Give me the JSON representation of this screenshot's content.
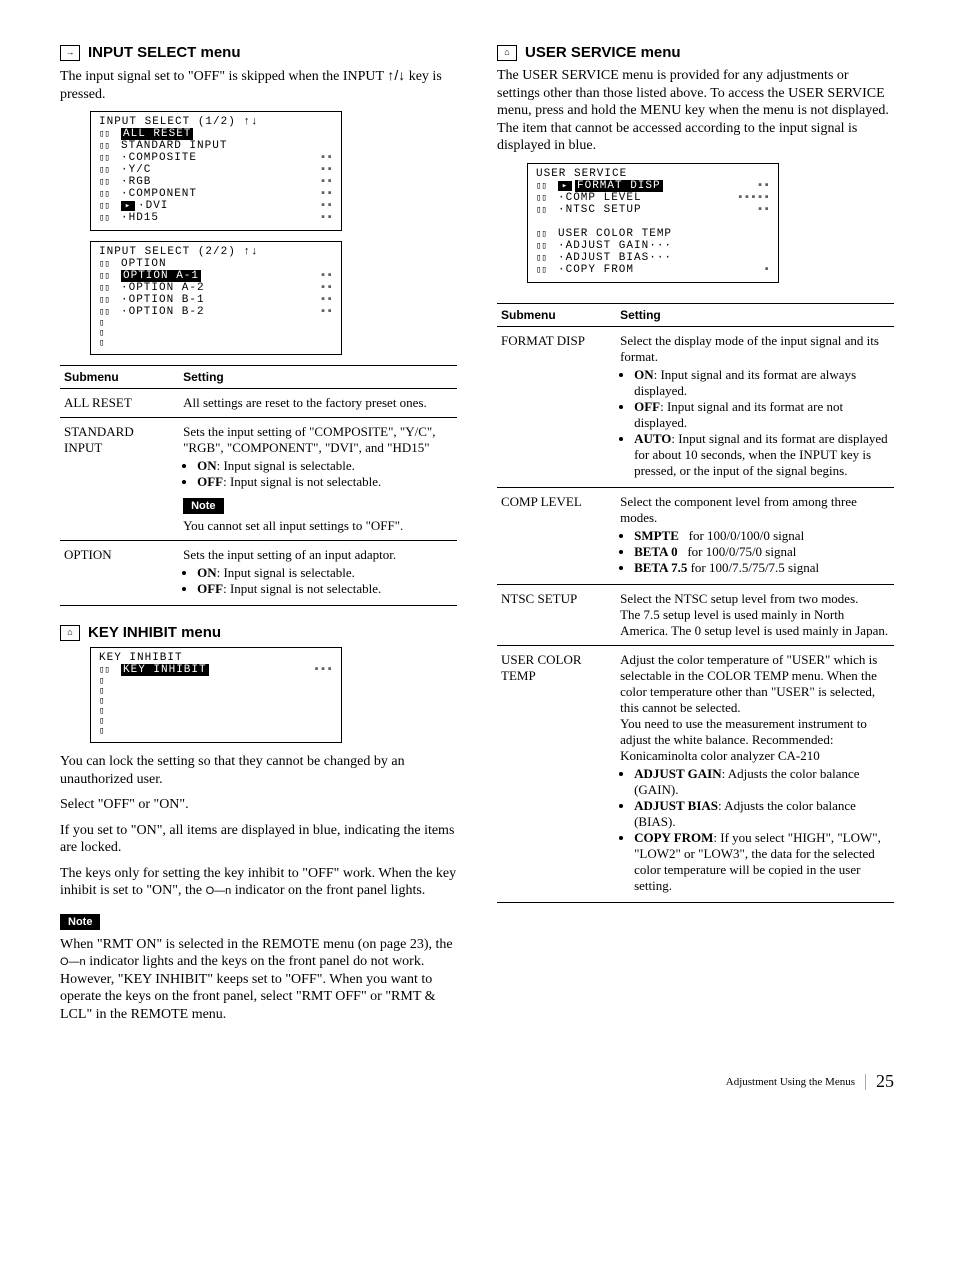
{
  "left": {
    "input_select": {
      "title": "INPUT SELECT menu",
      "intro_a": "The input signal set to \"OFF\" is skipped when the INPUT ",
      "intro_b": " key is pressed.",
      "osd1": {
        "title": "INPUT SELECT (1/2) ↑↓",
        "rows": [
          {
            "hl": true,
            "label": "ALL RESET",
            "bars": ""
          },
          {
            "hl": false,
            "label": "STANDARD INPUT",
            "bars": ""
          },
          {
            "hl": false,
            "label": "·COMPOSITE",
            "bars": "▪▪"
          },
          {
            "hl": false,
            "label": "·Y/C",
            "bars": "▪▪"
          },
          {
            "hl": false,
            "label": "·RGB",
            "bars": "▪▪"
          },
          {
            "hl": false,
            "label": "·COMPONENT",
            "bars": "▪▪"
          },
          {
            "hl": false,
            "label": "·DVI",
            "bars": "▪▪",
            "mid": true
          },
          {
            "hl": false,
            "label": "·HD15",
            "bars": "▪▪"
          }
        ]
      },
      "osd2": {
        "title": "INPUT SELECT (2/2) ↑↓",
        "rows": [
          {
            "hl": false,
            "label": "OPTION",
            "bars": ""
          },
          {
            "hl": true,
            "label": "OPTION A-1",
            "bars": "▪▪"
          },
          {
            "hl": false,
            "label": "·OPTION A-2",
            "bars": "▪▪"
          },
          {
            "hl": false,
            "label": "·OPTION B-1",
            "bars": "▪▪"
          },
          {
            "hl": false,
            "label": "·OPTION B-2",
            "bars": "▪▪"
          }
        ]
      },
      "table": {
        "h1": "Submenu",
        "h2": "Setting",
        "rows": [
          {
            "sub": "ALL RESET",
            "body": "All settings are reset to the factory preset ones."
          },
          {
            "sub": "STANDARD INPUT",
            "body_pre": "Sets the input setting of \"COMPOSITE\", \"Y/C\", \"RGB\", \"COMPONENT\", \"DVI\", and \"HD15\"",
            "bul": [
              "ON: Input signal is selectable.",
              "OFF: Input signal is not selectable."
            ],
            "note_label": "Note",
            "note_body": "You cannot set all input settings to \"OFF\"."
          },
          {
            "sub": "OPTION",
            "body_pre": "Sets the input setting of an input adaptor.",
            "bul": [
              "ON: Input signal is selectable.",
              "OFF: Input signal is not selectable."
            ]
          }
        ]
      }
    },
    "key_inhibit": {
      "title": "KEY INHIBIT menu",
      "osd": {
        "title": "KEY INHIBIT",
        "rows": [
          {
            "hl": true,
            "label": "KEY INHIBIT",
            "bars": "▪▪▪"
          }
        ],
        "blank_rows": 6
      },
      "para1": "You can lock the setting so that they cannot be changed by an unauthorized user.",
      "para2": "Select \"OFF\" or \"ON\".",
      "para3": "If you set to \"ON\", all items are displayed in blue, indicating the items are locked.",
      "para4": "The keys only for setting the key inhibit to \"OFF\" work. When the key inhibit is set to \"ON\", the ",
      "para4b": " indicator on the front panel lights.",
      "note_label": "Note",
      "note_body_a": "When \"RMT ON\" is selected in the REMOTE menu (on page 23), the ",
      "note_body_b": " indicator lights and the keys on the front panel do not work.  However, \"KEY INHIBIT\" keeps set to \"OFF\". When you want to operate the keys on the front panel, select \"RMT OFF\" or \"RMT & LCL\" in the REMOTE menu."
    }
  },
  "right": {
    "user_service": {
      "title": "USER SERVICE menu",
      "intro": "The USER SERVICE menu is provided for any adjustments or settings other than those listed above. To access the USER SERVICE menu, press and hold the MENU key when the menu is not displayed.  The item that cannot be accessed according to the input signal is displayed in blue.",
      "osd": {
        "title": "USER SERVICE",
        "rows": [
          {
            "hl": true,
            "mid": true,
            "label": "FORMAT DISP",
            "bars": "▪▪"
          },
          {
            "hl": false,
            "label": "·COMP LEVEL",
            "bars": "▪▪▪▪▪"
          },
          {
            "hl": false,
            "label": "·NTSC SETUP",
            "bars": "▪▪"
          },
          {
            "spacer": true
          },
          {
            "hl": false,
            "label": "USER COLOR TEMP",
            "bars": ""
          },
          {
            "hl": false,
            "label": "·ADJUST GAIN···",
            "bars": ""
          },
          {
            "hl": false,
            "label": "·ADJUST BIAS···",
            "bars": ""
          },
          {
            "hl": false,
            "label": "·COPY FROM",
            "bars": "▪"
          }
        ]
      },
      "table": {
        "h1": "Submenu",
        "h2": "Setting",
        "rows": [
          {
            "sub": "FORMAT DISP",
            "body_pre": "Select the display mode of the input signal and its format.",
            "bul": [
              "ON: Input signal and its format are always displayed.",
              "OFF: Input signal and its format are not displayed.",
              "AUTO: Input signal and its format are displayed for about 10 seconds, when the INPUT key is pressed, or the input of the signal begins."
            ]
          },
          {
            "sub": "COMP LEVEL",
            "body_pre": "Select the component level from among three modes.",
            "bul_html": [
              "<b>SMPTE</b>&nbsp;&nbsp;&nbsp;for 100/0/100/0 signal",
              "<b>BETA 0</b>&nbsp;&nbsp;&nbsp;for 100/0/75/0 signal",
              "<b>BETA 7.5</b> for 100/7.5/75/7.5 signal"
            ]
          },
          {
            "sub": "NTSC SETUP",
            "body": "Select the NTSC setup level from two modes.\nThe 7.5 setup level is used mainly in North America. The 0 setup level is used mainly in Japan."
          },
          {
            "sub": "USER COLOR TEMP",
            "body_pre": "Adjust the color temperature of \"USER\" which is selectable in the COLOR TEMP menu. When the color temperature other than \"USER\" is selected, this cannot be selected.\nYou need to use the measurement instrument to adjust the white balance. Recommended: Konicaminolta color analyzer CA-210",
            "bul": [
              "ADJUST GAIN: Adjusts the color balance (GAIN).",
              "ADJUST BIAS: Adjusts the color balance (BIAS).",
              "COPY FROM: If you select \"HIGH\", \"LOW\", \"LOW2\" or \"LOW3\", the data for the selected color temperature will be copied in the user setting."
            ]
          }
        ]
      }
    }
  },
  "footer": {
    "label": "Adjustment Using the Menus",
    "page": "25"
  },
  "colors": {
    "bars": "#606060"
  }
}
